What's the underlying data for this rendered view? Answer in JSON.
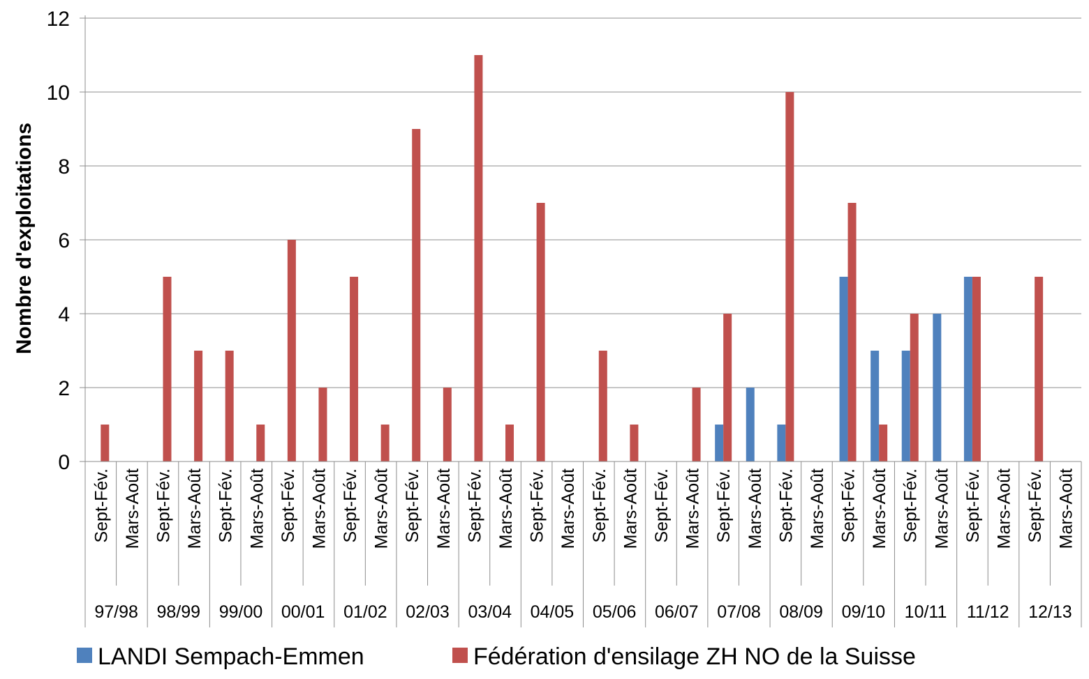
{
  "chart_data": {
    "type": "bar",
    "title": "",
    "xlabel": "",
    "ylabel": "Nombre d'exploitations",
    "ylim": [
      0,
      12
    ],
    "yticks": [
      0,
      2,
      4,
      6,
      8,
      10,
      12
    ],
    "grid": true,
    "legend_position": "bottom",
    "groups": [
      "97/98",
      "98/99",
      "99/00",
      "00/01",
      "01/02",
      "02/03",
      "03/04",
      "04/05",
      "05/06",
      "06/07",
      "07/08",
      "08/09",
      "09/10",
      "10/11",
      "11/12",
      "12/13"
    ],
    "subcategories": [
      "Sept-Fév.",
      "Mars-Août"
    ],
    "series": [
      {
        "name": "LANDI Sempach-Emmen",
        "color": "#4f81bd",
        "values": [
          0,
          0,
          0,
          0,
          0,
          0,
          0,
          0,
          0,
          0,
          0,
          0,
          0,
          0,
          0,
          0,
          0,
          0,
          0,
          0,
          1,
          2,
          1,
          0,
          5,
          3,
          3,
          4,
          5,
          0,
          0,
          0
        ]
      },
      {
        "name": "Fédération d'ensilage ZH NO de la Suisse",
        "color": "#c0504d",
        "values": [
          1,
          0,
          5,
          3,
          3,
          1,
          6,
          2,
          5,
          1,
          9,
          2,
          11,
          1,
          7,
          0,
          3,
          1,
          0,
          2,
          4,
          0,
          10,
          0,
          7,
          1,
          4,
          0,
          5,
          0,
          5,
          0
        ]
      }
    ]
  }
}
